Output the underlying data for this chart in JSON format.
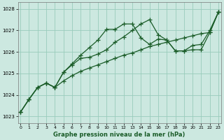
{
  "title": "Graphe pression niveau de la mer (hPa)",
  "bg_color": "#cce8e0",
  "grid_color": "#99ccbb",
  "line_color": "#1a5c28",
  "xlim": [
    -0.3,
    23.3
  ],
  "ylim": [
    1022.7,
    1028.3
  ],
  "yticks": [
    1023,
    1024,
    1025,
    1026,
    1027,
    1028
  ],
  "xticks": [
    0,
    1,
    2,
    3,
    4,
    5,
    6,
    7,
    8,
    9,
    10,
    11,
    12,
    13,
    14,
    15,
    16,
    17,
    18,
    19,
    20,
    21,
    22,
    23
  ],
  "series": [
    {
      "y": [
        1023.2,
        1023.8,
        1024.35,
        1024.55,
        1024.35,
        1024.65,
        1024.9,
        1025.1,
        1025.25,
        1025.4,
        1025.55,
        1025.7,
        1025.85,
        1025.95,
        1026.1,
        1026.25,
        1026.35,
        1026.45,
        1026.55,
        1026.65,
        1026.75,
        1026.85,
        1026.9,
        1027.85
      ],
      "linestyle": "-",
      "linewidth": 0.9,
      "marker": "+",
      "markersize": 4,
      "markevery": [
        0,
        1,
        2,
        3,
        4,
        5,
        6,
        7,
        8,
        9,
        10,
        11,
        12,
        13,
        14,
        15,
        16,
        17,
        18,
        19,
        20,
        21,
        22,
        23
      ]
    },
    {
      "y": [
        1023.2,
        1023.8,
        1024.35,
        1024.55,
        1024.35,
        1025.05,
        1025.45,
        1025.85,
        1026.2,
        1026.55,
        1027.05,
        1027.05,
        1027.3,
        1027.3,
        1026.65,
        1026.35,
        1026.6,
        1026.55,
        1026.05,
        1026.05,
        1026.1,
        1026.1,
        1026.9,
        1027.85
      ],
      "linestyle": "-",
      "linewidth": 0.9,
      "marker": "+",
      "markersize": 4,
      "markevery": [
        0,
        1,
        2,
        3,
        4,
        5,
        6,
        7,
        8,
        9,
        10,
        11,
        12,
        13,
        14,
        15,
        16,
        17,
        18,
        19,
        20,
        21,
        22,
        23
      ]
    },
    {
      "y": [
        1023.2,
        1023.8,
        1024.35,
        1024.55,
        1024.35,
        1025.05,
        1025.4,
        1025.7,
        1025.75,
        1025.9,
        1026.1,
        1026.45,
        1026.7,
        1027.0,
        1027.3,
        1027.5,
        1026.8,
        1026.55,
        1026.05,
        1026.05,
        1026.3,
        1026.35,
        1027.0,
        1027.85
      ],
      "linestyle": "-",
      "linewidth": 0.9,
      "marker": "+",
      "markersize": 4,
      "markevery": [
        0,
        1,
        2,
        3,
        4,
        5,
        6,
        7,
        8,
        9,
        10,
        11,
        12,
        13,
        14,
        15,
        16,
        17,
        18,
        19,
        20,
        21,
        22,
        23
      ]
    }
  ]
}
